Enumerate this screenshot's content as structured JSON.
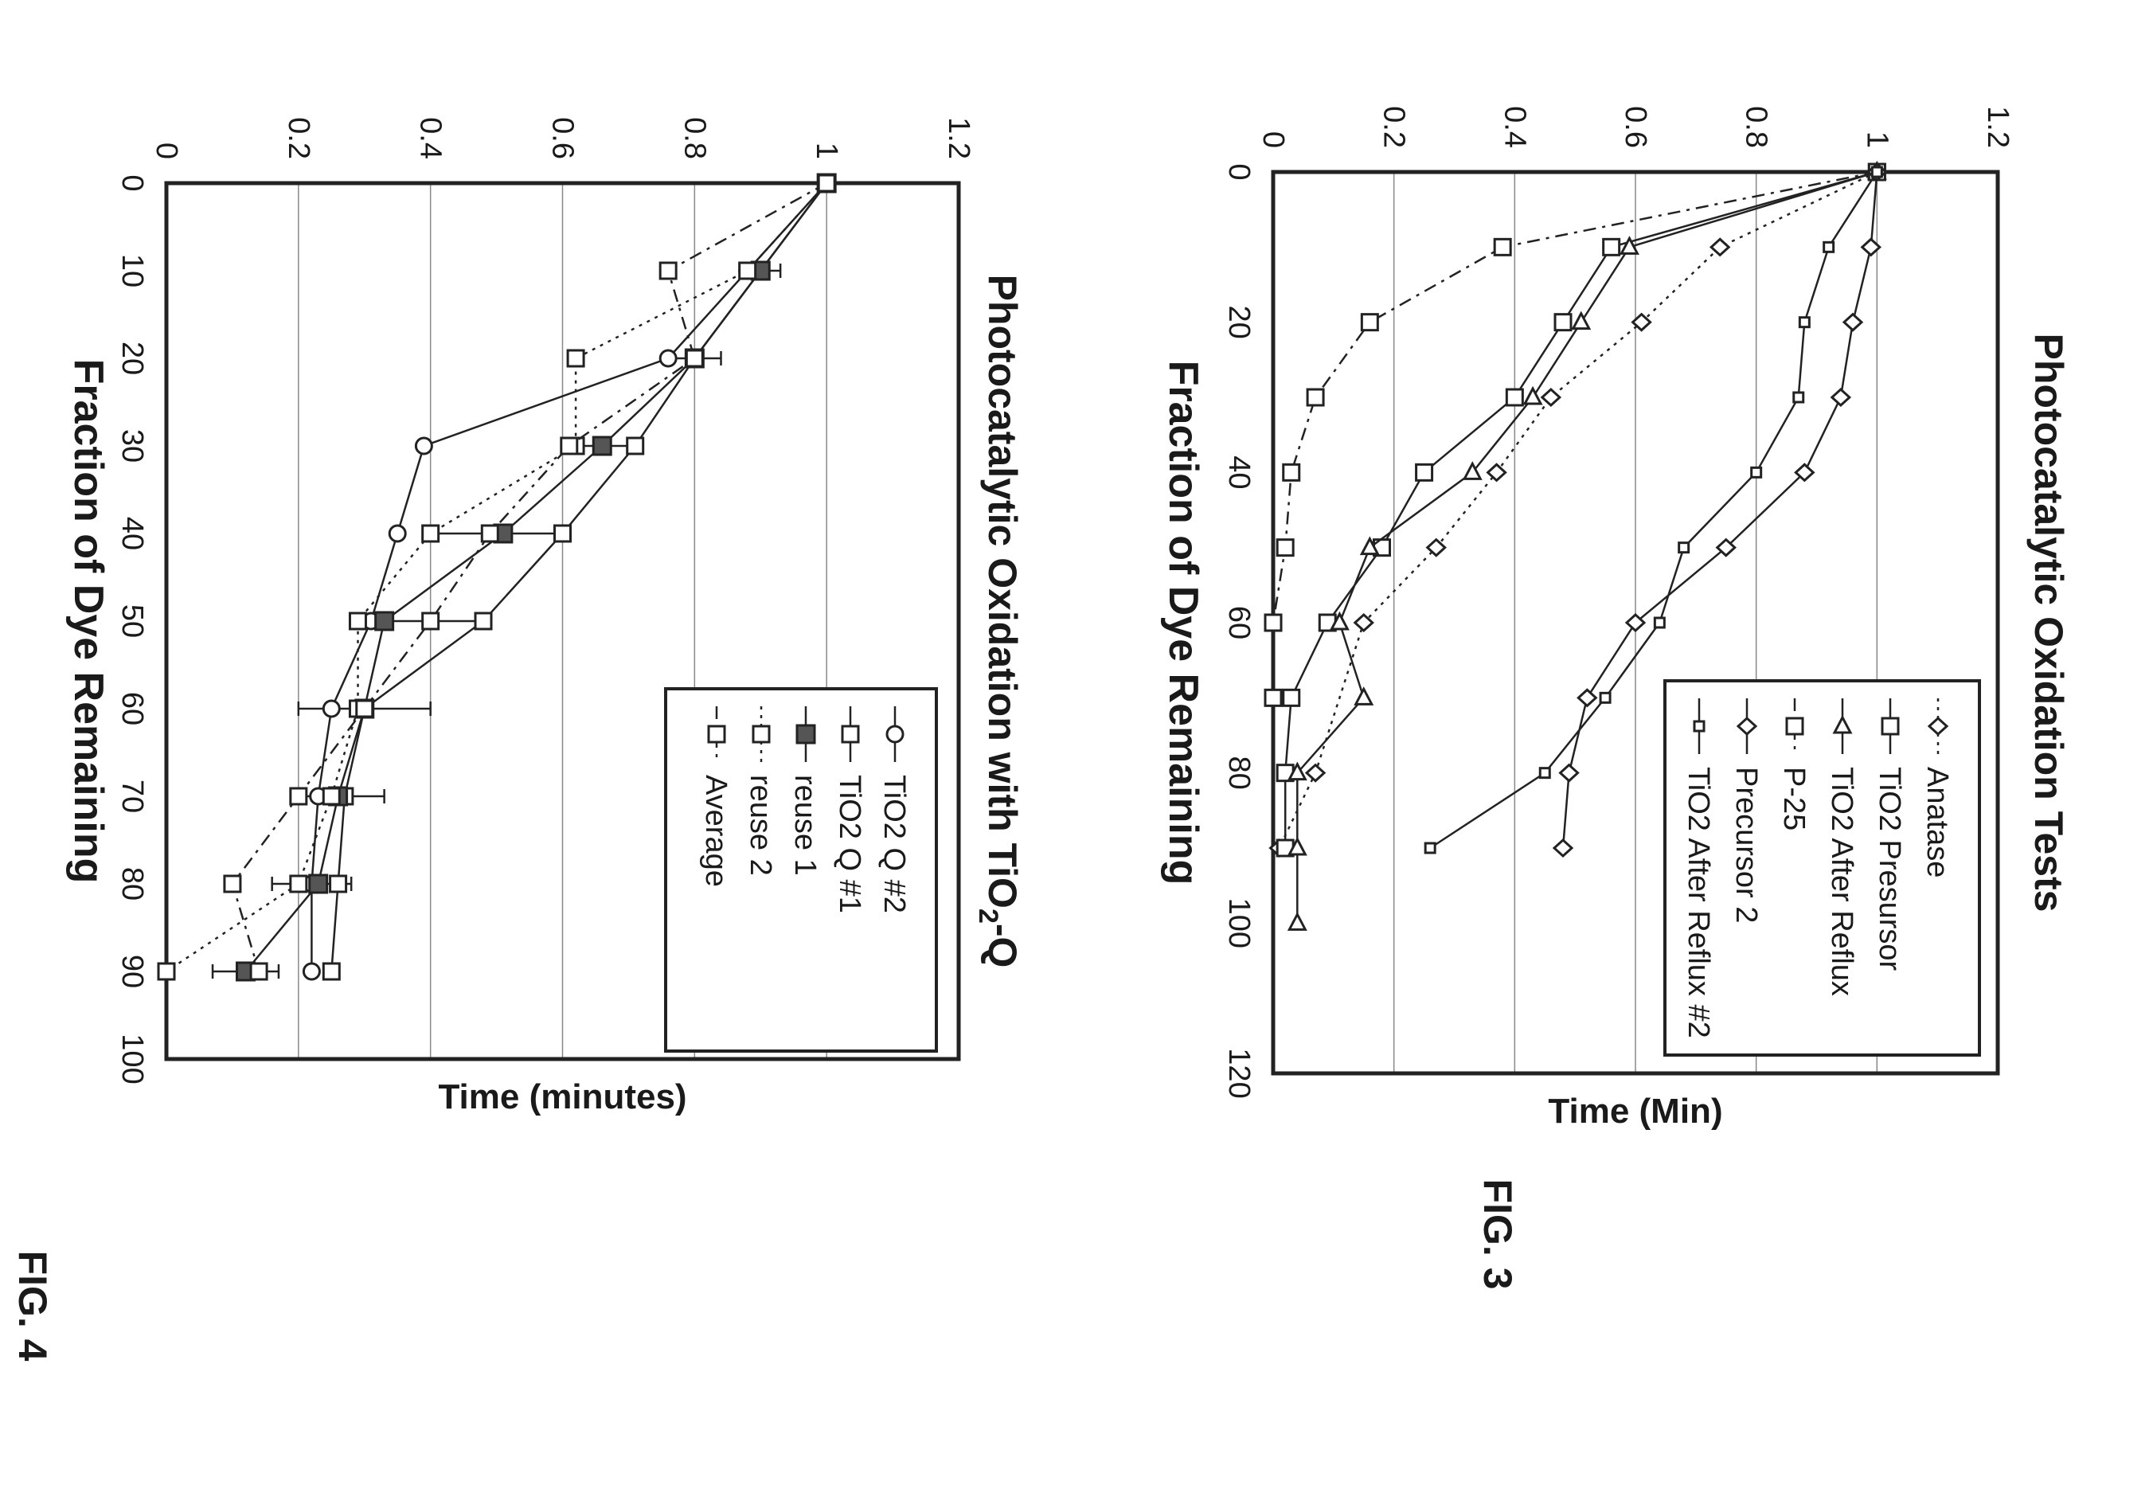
{
  "chart_data": [
    {
      "type": "line",
      "figure_label": "FIG. 3",
      "title": "Photocatalytic Oxidation Tests",
      "xlabel": "Time (Min)",
      "ylabel": "Fraction of Dye Remaining",
      "xlim": [
        0,
        120
      ],
      "ylim": [
        0,
        1.2
      ],
      "xticks": [
        "0",
        "20",
        "40",
        "60",
        "80",
        "100",
        "120"
      ],
      "yticks": [
        "0",
        "0.2",
        "0.4",
        "0.6",
        "0.8",
        "1",
        "1.2"
      ],
      "grid": true,
      "legend_position": "top-right",
      "series": [
        {
          "name": "Anatase",
          "marker": "diamond",
          "dash": "dotted",
          "points": [
            [
              0,
              1.0
            ],
            [
              10,
              0.74
            ],
            [
              20,
              0.61
            ],
            [
              30,
              0.46
            ],
            [
              40,
              0.37
            ],
            [
              50,
              0.27
            ],
            [
              60,
              0.15
            ],
            [
              80,
              0.07
            ],
            [
              90,
              0.01
            ]
          ]
        },
        {
          "name": "TiO2 Presursor",
          "marker": "square",
          "dash": "solid",
          "points": [
            [
              0,
              1.0
            ],
            [
              10,
              0.56
            ],
            [
              20,
              0.48
            ],
            [
              30,
              0.4
            ],
            [
              40,
              0.25
            ],
            [
              50,
              0.18
            ],
            [
              60,
              0.09
            ],
            [
              70,
              0.03
            ],
            [
              80,
              0.02
            ],
            [
              90,
              0.02
            ]
          ]
        },
        {
          "name": "TiO2 After Reflux",
          "marker": "triangle",
          "dash": "solid",
          "points": [
            [
              0,
              1.0
            ],
            [
              10,
              0.59
            ],
            [
              20,
              0.51
            ],
            [
              30,
              0.43
            ],
            [
              40,
              0.33
            ],
            [
              50,
              0.16
            ],
            [
              60,
              0.11
            ],
            [
              70,
              0.15
            ],
            [
              80,
              0.04
            ],
            [
              90,
              0.04
            ],
            [
              100,
              0.04
            ]
          ]
        },
        {
          "name": "P-25",
          "marker": "square",
          "dash": "dashdot",
          "points": [
            [
              0,
              1.0
            ],
            [
              10,
              0.38
            ],
            [
              20,
              0.16
            ],
            [
              30,
              0.07
            ],
            [
              40,
              0.03
            ],
            [
              50,
              0.02
            ],
            [
              60,
              0.0
            ],
            [
              70,
              0.0
            ]
          ]
        },
        {
          "name": "Precursor 2",
          "marker": "diamond",
          "dash": "solid",
          "points": [
            [
              0,
              1.0
            ],
            [
              10,
              0.99
            ],
            [
              20,
              0.96
            ],
            [
              30,
              0.94
            ],
            [
              40,
              0.88
            ],
            [
              50,
              0.75
            ],
            [
              60,
              0.6
            ],
            [
              70,
              0.52
            ],
            [
              80,
              0.49
            ],
            [
              90,
              0.48
            ]
          ]
        },
        {
          "name": "TiO2 After Reflux #2",
          "marker": "small-square",
          "dash": "solid",
          "points": [
            [
              0,
              1.0
            ],
            [
              10,
              0.92
            ],
            [
              20,
              0.88
            ],
            [
              30,
              0.87
            ],
            [
              40,
              0.8
            ],
            [
              50,
              0.68
            ],
            [
              60,
              0.64
            ],
            [
              70,
              0.55
            ],
            [
              80,
              0.45
            ],
            [
              90,
              0.26
            ]
          ]
        }
      ]
    },
    {
      "type": "line",
      "figure_label": "FIG. 4",
      "title": "Photocatalytic Oxidation with TiO2-Q",
      "title_main": "Photocatalytic Oxidation with TiO",
      "title_sub": "2",
      "title_tail": "-Q",
      "xlabel": "Time (minutes)",
      "ylabel": "Fraction of Dye Remaining",
      "xlim": [
        0,
        100
      ],
      "ylim": [
        0,
        1.2
      ],
      "xticks": [
        "0",
        "10",
        "20",
        "30",
        "40",
        "50",
        "60",
        "70",
        "80",
        "90",
        "100"
      ],
      "yticks": [
        "0",
        "0.2",
        "0.4",
        "0.6",
        "0.8",
        "1",
        "1.2"
      ],
      "grid": true,
      "legend_position": "top-right",
      "series": [
        {
          "name": "TiO2 Q #2",
          "marker": "circle",
          "dash": "solid",
          "points": [
            [
              0,
              1.0
            ],
            [
              10,
              0.88
            ],
            [
              20,
              0.76
            ],
            [
              30,
              0.39
            ],
            [
              40,
              0.35
            ],
            [
              50,
              0.31
            ],
            [
              60,
              0.25
            ],
            [
              70,
              0.23
            ],
            [
              80,
              0.22
            ],
            [
              90,
              0.22
            ]
          ]
        },
        {
          "name": "TiO2 Q #1",
          "marker": "square",
          "dash": "solid",
          "points": [
            [
              0,
              1.0
            ],
            [
              10,
              0.9
            ],
            [
              20,
              0.8
            ],
            [
              30,
              0.71
            ],
            [
              40,
              0.6
            ],
            [
              50,
              0.48
            ],
            [
              60,
              0.3
            ],
            [
              70,
              0.27
            ],
            [
              80,
              0.26
            ],
            [
              90,
              0.25
            ]
          ]
        },
        {
          "name": "reuse 1",
          "marker": "filled-square",
          "dash": "solid",
          "points": [
            [
              0,
              1.0
            ],
            [
              10,
              0.9
            ],
            [
              20,
              0.8
            ],
            [
              30,
              0.66
            ],
            [
              40,
              0.51
            ],
            [
              50,
              0.33
            ],
            [
              60,
              0.3
            ],
            [
              70,
              0.26
            ],
            [
              80,
              0.23
            ],
            [
              90,
              0.12
            ]
          ]
        },
        {
          "name": "reuse 2",
          "marker": "square",
          "dash": "dotted",
          "points": [
            [
              0,
              1.0
            ],
            [
              10,
              0.88
            ],
            [
              20,
              0.62
            ],
            [
              30,
              0.62
            ],
            [
              40,
              0.4
            ],
            [
              50,
              0.29
            ],
            [
              60,
              0.29
            ],
            [
              70,
              0.25
            ],
            [
              80,
              0.2
            ],
            [
              90,
              0.0
            ]
          ]
        },
        {
          "name": "Average",
          "marker": "square",
          "dash": "dashdot",
          "points": [
            [
              0,
              1.0
            ],
            [
              10,
              0.76
            ],
            [
              20,
              0.8
            ],
            [
              30,
              0.61
            ],
            [
              40,
              0.49
            ],
            [
              50,
              0.4
            ],
            [
              60,
              0.3
            ],
            [
              70,
              0.2
            ],
            [
              80,
              0.1
            ],
            [
              90,
              0.14
            ]
          ]
        }
      ],
      "error_bars": {
        "x": [
          10,
          20,
          30,
          40,
          50,
          60,
          70,
          80,
          90
        ],
        "center": [
          0.9,
          0.8,
          0.66,
          0.51,
          0.4,
          0.3,
          0.26,
          0.22,
          0.12
        ],
        "err": [
          0.03,
          0.04,
          0.06,
          0.1,
          0.08,
          0.1,
          0.07,
          0.06,
          0.05
        ]
      }
    }
  ]
}
